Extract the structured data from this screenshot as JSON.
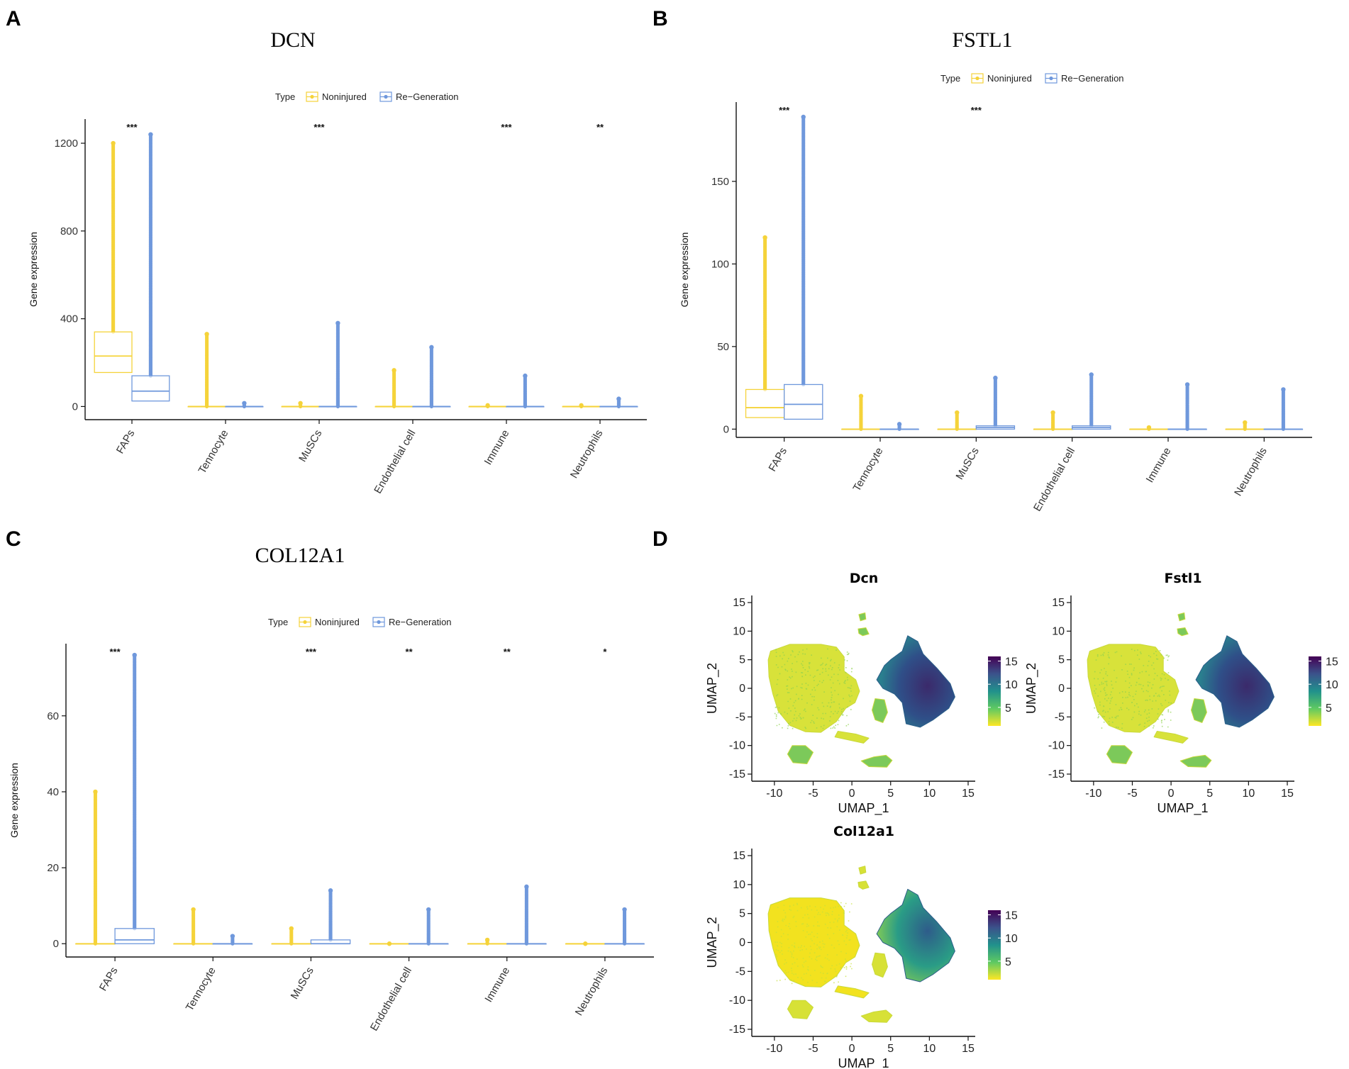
{
  "panels": {
    "A": {
      "letter": "A",
      "gene": "DCN"
    },
    "B": {
      "letter": "B",
      "gene": "FSTL1"
    },
    "C": {
      "letter": "C",
      "gene": "COL12A1"
    },
    "D": {
      "letter": "D"
    }
  },
  "legend": {
    "title": "Type",
    "items": [
      "Noninjured",
      "Re−Generation"
    ]
  },
  "colors": {
    "noninjured": "#f5d33a",
    "regeneration": "#6f98dc",
    "viridis": [
      "#fde725",
      "#5ec962",
      "#21918c",
      "#3b528b",
      "#440154"
    ]
  },
  "chart_data": [
    {
      "type": "box",
      "id": "A",
      "title": "DCN",
      "ylabel": "Gene expression",
      "ylim": [
        -60,
        1310
      ],
      "yticks": [
        0,
        400,
        800,
        1200
      ],
      "categories": [
        "FAPs",
        "Tennocyte",
        "MuSCs",
        "Endothelial cell",
        "Immune",
        "Neutrophils"
      ],
      "significance": [
        "***",
        "",
        "***",
        "",
        "***",
        "**"
      ],
      "series": [
        {
          "name": "Noninjured",
          "boxes": [
            [
              155,
              230,
              340
            ],
            [
              0,
              0,
              0
            ],
            [
              0,
              0,
              0
            ],
            [
              0,
              0,
              0
            ],
            [
              0,
              0,
              0
            ],
            [
              0,
              0,
              0
            ]
          ],
          "max": [
            1200,
            330,
            15,
            165,
            5,
            5
          ]
        },
        {
          "name": "Re−Generation",
          "boxes": [
            [
              25,
              70,
              140
            ],
            [
              0,
              0,
              0
            ],
            [
              0,
              0,
              0
            ],
            [
              0,
              0,
              0
            ],
            [
              0,
              0,
              0
            ],
            [
              0,
              0,
              0
            ]
          ],
          "max": [
            1240,
            15,
            380,
            270,
            140,
            35
          ]
        }
      ]
    },
    {
      "type": "box",
      "id": "B",
      "title": "FSTL1",
      "ylabel": "Gene expression",
      "ylim": [
        -5,
        198
      ],
      "yticks": [
        0,
        50,
        100,
        150
      ],
      "categories": [
        "FAPs",
        "Tennocyte",
        "MuSCs",
        "Endothelial cell",
        "Immune",
        "Neutrophils"
      ],
      "significance": [
        "***",
        "",
        "***",
        "",
        "",
        ""
      ],
      "series": [
        {
          "name": "Noninjured",
          "boxes": [
            [
              7,
              13,
              24
            ],
            [
              0,
              0,
              0
            ],
            [
              0,
              0,
              0
            ],
            [
              0,
              0,
              0
            ],
            [
              0,
              0,
              0
            ],
            [
              0,
              0,
              0
            ]
          ],
          "max": [
            116,
            20,
            10,
            10,
            1,
            4
          ]
        },
        {
          "name": "Re−Generation",
          "boxes": [
            [
              6,
              15,
              27
            ],
            [
              0,
              0,
              0
            ],
            [
              0,
              1,
              2
            ],
            [
              0,
              1,
              2
            ],
            [
              0,
              0,
              0
            ],
            [
              0,
              0,
              0
            ]
          ],
          "max": [
            189,
            3,
            31,
            33,
            27,
            24
          ]
        }
      ]
    },
    {
      "type": "box",
      "id": "C",
      "title": "COL12A1",
      "ylabel": "Gene expression",
      "ylim": [
        -3.5,
        79
      ],
      "yticks": [
        0,
        20,
        40,
        60
      ],
      "categories": [
        "FAPs",
        "Tennocyte",
        "MuSCs",
        "Endothelial cell",
        "Immune",
        "Neutrophils"
      ],
      "significance": [
        "***",
        "",
        "***",
        "**",
        "**",
        "*"
      ],
      "series": [
        {
          "name": "Noninjured",
          "boxes": [
            [
              0,
              0,
              0
            ],
            [
              0,
              0,
              0
            ],
            [
              0,
              0,
              0
            ],
            [
              0,
              0,
              0
            ],
            [
              0,
              0,
              0
            ],
            [
              0,
              0,
              0
            ]
          ],
          "max": [
            40,
            9,
            4,
            0,
            1,
            0
          ]
        },
        {
          "name": "Re−Generation",
          "boxes": [
            [
              0,
              1,
              4
            ],
            [
              0,
              0,
              0
            ],
            [
              0,
              0,
              1
            ],
            [
              0,
              0,
              0
            ],
            [
              0,
              0,
              0
            ],
            [
              0,
              0,
              0
            ]
          ],
          "max": [
            76,
            2,
            14,
            9,
            15,
            9
          ]
        }
      ]
    },
    {
      "type": "scatter",
      "id": "D1",
      "title": "Dcn",
      "xlabel": "UMAP_1",
      "ylabel": "UMAP_2",
      "xlim": [
        -12,
        15
      ],
      "ylim": [
        -15,
        15
      ],
      "xticks": [
        -10,
        -5,
        0,
        5,
        10,
        15
      ],
      "yticks": [
        -15,
        -10,
        -5,
        0,
        5,
        10,
        15
      ],
      "colorbar": {
        "ticks": [
          5,
          10,
          15
        ],
        "range": [
          1,
          16
        ]
      }
    },
    {
      "type": "scatter",
      "id": "D2",
      "title": "Fstl1",
      "xlabel": "UMAP_1",
      "ylabel": "UMAP_2",
      "xlim": [
        -12,
        15
      ],
      "ylim": [
        -15,
        15
      ],
      "xticks": [
        -10,
        -5,
        0,
        5,
        10,
        15
      ],
      "yticks": [
        -15,
        -10,
        -5,
        0,
        5,
        10,
        15
      ],
      "colorbar": {
        "ticks": [
          5,
          10,
          15
        ],
        "range": [
          1,
          16
        ]
      }
    },
    {
      "type": "scatter",
      "id": "D3",
      "title": "Col12a1",
      "xlabel": "UMAP_1",
      "ylabel": "UMAP_2",
      "xlim": [
        -12,
        15
      ],
      "ylim": [
        -15,
        15
      ],
      "xticks": [
        -10,
        -5,
        0,
        5,
        10,
        15
      ],
      "yticks": [
        -15,
        -10,
        -5,
        0,
        5,
        10,
        15
      ],
      "colorbar": {
        "ticks": [
          5,
          10,
          15
        ],
        "range": [
          1,
          16
        ]
      }
    }
  ]
}
